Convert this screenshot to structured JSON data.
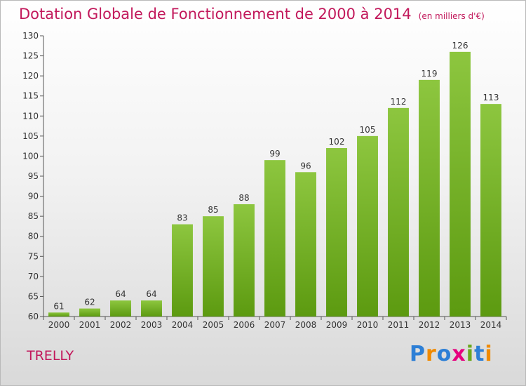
{
  "header": {
    "title": "Dotation Globale de Fonctionnement de 2000 à 2014",
    "unit": "(en milliers d'€)"
  },
  "commune": "TRELLY",
  "logo": {
    "text": "Proxiti",
    "letters": [
      {
        "ch": "P",
        "color": "#2d7fd6"
      },
      {
        "ch": "r",
        "color": "#f08a00"
      },
      {
        "ch": "o",
        "color": "#2d7fd6"
      },
      {
        "ch": "x",
        "color": "#e6007e"
      },
      {
        "ch": "i",
        "color": "#6aa81e"
      },
      {
        "ch": "t",
        "color": "#2d7fd6"
      },
      {
        "ch": "i",
        "color": "#f08a00"
      }
    ]
  },
  "colors": {
    "bar_top": "#8dc63f",
    "bar_bottom": "#5c9a10",
    "text": "#c2185b"
  },
  "chart_data": {
    "type": "bar",
    "title": "Dotation Globale de Fonctionnement de 2000 à 2014",
    "xlabel": "",
    "ylabel": "",
    "categories": [
      "2000",
      "2001",
      "2002",
      "2003",
      "2004",
      "2005",
      "2006",
      "2007",
      "2008",
      "2009",
      "2010",
      "2011",
      "2012",
      "2013",
      "2014"
    ],
    "values": [
      61,
      62,
      64,
      64,
      83,
      85,
      88,
      99,
      96,
      102,
      105,
      112,
      119,
      126,
      113
    ],
    "ylim": [
      60,
      130
    ],
    "yticks": [
      60,
      65,
      70,
      75,
      80,
      85,
      90,
      95,
      100,
      105,
      110,
      115,
      120,
      125,
      130
    ],
    "grid": false,
    "legend": "none"
  }
}
